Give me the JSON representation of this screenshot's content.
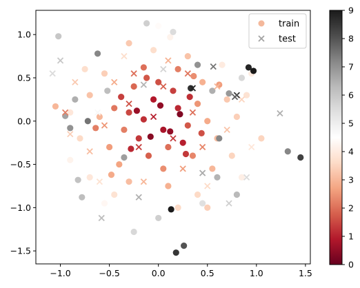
{
  "chart_data": {
    "type": "scatter",
    "title": "",
    "xlabel": "",
    "ylabel": "",
    "xlim": [
      -1.25,
      1.55
    ],
    "ylim": [
      -1.65,
      1.28
    ],
    "xticks": [
      -1.0,
      -0.5,
      0.0,
      0.5,
      1.0,
      1.5
    ],
    "xtick_labels": [
      "−1.0",
      "−0.5",
      "0.0",
      "0.5",
      "1.0",
      "1.5"
    ],
    "yticks": [
      1.0,
      0.5,
      0.0,
      -0.5,
      -1.0,
      -1.5
    ],
    "ytick_labels": [
      "1.0",
      "0.5",
      "0.0",
      "−0.5",
      "−1.0",
      "−1.5"
    ],
    "grid": false,
    "legend_position": "top-right",
    "colormap": "RdGy",
    "colorbar": {
      "min": 0,
      "max": 9,
      "ticks": [
        9,
        8,
        7,
        6,
        5,
        4,
        3,
        2,
        1,
        0
      ],
      "tick_labels": [
        "9",
        "8",
        "7",
        "6",
        "5",
        "4",
        "3",
        "2",
        "1",
        "0"
      ],
      "colors": [
        "#67001f",
        "#b2182b",
        "#d6604d",
        "#f4a582",
        "#fddbc7",
        "#ffffff",
        "#e0e0e0",
        "#bababa",
        "#878787",
        "#4d4d4d",
        "#1a1a1a"
      ]
    },
    "series": [
      {
        "name": "train",
        "marker": "circle",
        "legend_color": "#f4b89b",
        "points": [
          [
            -0.15,
            0.02,
            1.2
          ],
          [
            0.05,
            -0.1,
            0.8
          ],
          [
            -0.3,
            0.1,
            1.5
          ],
          [
            0.2,
            0.15,
            1.1
          ],
          [
            0.1,
            -0.3,
            2.0
          ],
          [
            -0.2,
            -0.2,
            1.3
          ],
          [
            0.3,
            -0.05,
            1.7
          ],
          [
            -0.05,
            0.25,
            0.9
          ],
          [
            0.15,
            0.35,
            1.4
          ],
          [
            -0.35,
            -0.1,
            2.2
          ],
          [
            0.25,
            -0.25,
            1.0
          ],
          [
            -0.1,
            -0.4,
            1.8
          ],
          [
            0.4,
            0.2,
            2.5
          ],
          [
            -0.45,
            0.15,
            2.1
          ],
          [
            0.0,
            0.45,
            1.6
          ],
          [
            0.35,
            -0.4,
            2.3
          ],
          [
            -0.25,
            0.4,
            1.9
          ],
          [
            0.5,
            0.0,
            2.8
          ],
          [
            -0.5,
            -0.3,
            2.6
          ],
          [
            0.05,
            -0.55,
            2.4
          ],
          [
            -0.6,
            0.05,
            3.0
          ],
          [
            0.6,
            -0.2,
            3.1
          ],
          [
            0.45,
            0.45,
            2.9
          ],
          [
            -0.4,
            -0.5,
            2.7
          ],
          [
            0.2,
            0.6,
            2.2
          ],
          [
            -0.15,
            0.62,
            2.0
          ],
          [
            0.7,
            0.25,
            3.3
          ],
          [
            -0.7,
            0.3,
            3.2
          ],
          [
            0.55,
            -0.55,
            3.0
          ],
          [
            -0.55,
            0.55,
            3.4
          ],
          [
            0.1,
            -0.75,
            2.9
          ],
          [
            -0.3,
            -0.7,
            3.1
          ],
          [
            0.75,
            -0.4,
            3.5
          ],
          [
            -0.8,
            -0.2,
            3.6
          ],
          [
            0.8,
            0.05,
            3.4
          ],
          [
            0.3,
            0.75,
            3.2
          ],
          [
            -0.05,
            0.82,
            3.7
          ],
          [
            0.9,
            0.3,
            3.8
          ],
          [
            -0.9,
            0.1,
            3.9
          ],
          [
            0.4,
            -0.85,
            3.6
          ],
          [
            -0.45,
            -0.85,
            3.8
          ],
          [
            0.65,
            0.65,
            4.0
          ],
          [
            -0.7,
            -0.65,
            3.9
          ],
          [
            1.05,
            -0.2,
            3.5
          ],
          [
            -1.05,
            0.17,
            3.0
          ],
          [
            0.12,
            0.97,
            4.2
          ],
          [
            0.2,
            -1.0,
            3.6
          ],
          [
            -0.55,
            -0.95,
            4.3
          ],
          [
            0.5,
            -1.0,
            3.4
          ],
          [
            -0.3,
            0.9,
            3.3
          ],
          [
            0.22,
            0.08,
            0.3
          ],
          [
            -0.08,
            -0.18,
            0.4
          ],
          [
            0.12,
            -0.12,
            0.5
          ],
          [
            -0.22,
            0.12,
            0.6
          ],
          [
            0.02,
            0.18,
            0.5
          ],
          [
            0.32,
            0.28,
            1.2
          ],
          [
            -0.38,
            0.28,
            1.4
          ],
          [
            0.28,
            -0.38,
            1.3
          ],
          [
            -0.28,
            -0.32,
            1.1
          ],
          [
            0.44,
            -0.14,
            1.6
          ],
          [
            -0.64,
            -0.08,
            2.2
          ],
          [
            -0.12,
            0.5,
            1.7
          ],
          [
            0.36,
            0.52,
            2.4
          ],
          [
            -0.48,
            -0.62,
            2.8
          ],
          [
            0.62,
            0.42,
            2.6
          ],
          [
            0.0,
            1.1,
            4.4
          ],
          [
            -0.75,
            0.6,
            3.7
          ],
          [
            0.85,
            -0.65,
            4.1
          ],
          [
            -0.9,
            -0.45,
            4.2
          ],
          [
            0.95,
            0.55,
            4.0
          ],
          [
            -1.02,
            0.98,
            6.0
          ],
          [
            -0.62,
            0.78,
            7.2
          ],
          [
            -0.12,
            1.13,
            5.8
          ],
          [
            0.15,
            1.03,
            5.5
          ],
          [
            0.4,
            0.65,
            7.0
          ],
          [
            0.55,
            0.35,
            6.5
          ],
          [
            0.92,
            0.62,
            8.8
          ],
          [
            0.97,
            0.58,
            9.0
          ],
          [
            1.32,
            -0.35,
            7.2
          ],
          [
            1.45,
            -0.42,
            8.3
          ],
          [
            0.13,
            -1.02,
            9.0
          ],
          [
            0.18,
            -1.52,
            8.5
          ],
          [
            0.26,
            -1.44,
            8.0
          ],
          [
            -0.25,
            -1.28,
            5.6
          ],
          [
            0.0,
            -1.12,
            5.8
          ],
          [
            -0.85,
            0.25,
            6.5
          ],
          [
            -0.9,
            -0.08,
            7.0
          ],
          [
            -0.72,
            0.0,
            7.5
          ],
          [
            -0.35,
            -0.42,
            6.8
          ],
          [
            0.62,
            -0.2,
            7.2
          ],
          [
            0.6,
            -0.65,
            6.4
          ],
          [
            0.33,
            0.38,
            8.6
          ],
          [
            -0.82,
            -0.68,
            6.1
          ],
          [
            -0.78,
            -0.88,
            6.2
          ],
          [
            0.8,
            -0.85,
            6.3
          ],
          [
            -0.52,
            0.35,
            6.2
          ],
          [
            0.72,
            0.32,
            6.9
          ],
          [
            -0.95,
            0.06,
            6.7
          ],
          [
            0.85,
            0.5,
            5.6
          ],
          [
            0.45,
            -0.95,
            5.4
          ]
        ]
      },
      {
        "name": "test",
        "marker": "x",
        "legend_color": "#a3a3a3",
        "points": [
          [
            -0.05,
            0.05,
            1.0
          ],
          [
            0.15,
            -0.2,
            1.3
          ],
          [
            -0.3,
            0.2,
            1.6
          ],
          [
            0.35,
            0.1,
            2.0
          ],
          [
            -0.2,
            -0.3,
            1.4
          ],
          [
            0.05,
            0.4,
            1.8
          ],
          [
            0.45,
            -0.3,
            2.3
          ],
          [
            -0.55,
            -0.05,
            2.5
          ],
          [
            0.25,
            -0.55,
            2.6
          ],
          [
            -0.45,
            0.45,
            2.8
          ],
          [
            0.6,
            0.4,
            3.0
          ],
          [
            -0.7,
            -0.35,
            3.1
          ],
          [
            0.7,
            -0.1,
            3.2
          ],
          [
            -0.15,
            -0.7,
            3.0
          ],
          [
            0.1,
            0.7,
            2.9
          ],
          [
            -0.85,
            0.45,
            3.3
          ],
          [
            0.85,
            0.25,
            3.5
          ],
          [
            -0.9,
            -0.15,
            3.4
          ],
          [
            0.5,
            -0.75,
            3.6
          ],
          [
            -0.35,
            0.75,
            3.7
          ],
          [
            -0.95,
            0.1,
            2.2
          ],
          [
            0.95,
            -0.3,
            3.9
          ],
          [
            -0.6,
            -0.7,
            3.8
          ],
          [
            0.3,
            0.55,
            2.1
          ],
          [
            -0.25,
            0.55,
            2.0
          ],
          [
            -1.0,
            0.7,
            6.0
          ],
          [
            -1.08,
            0.55,
            5.5
          ],
          [
            -0.58,
            -1.12,
            6.2
          ],
          [
            -0.2,
            -0.88,
            6.5
          ],
          [
            0.56,
            0.63,
            7.5
          ],
          [
            0.8,
            0.3,
            8.5
          ],
          [
            0.78,
            0.28,
            7.8
          ],
          [
            1.24,
            0.09,
            6.5
          ],
          [
            0.72,
            -0.95,
            5.8
          ],
          [
            0.9,
            -0.65,
            5.5
          ],
          [
            0.35,
            0.38,
            8.8
          ],
          [
            0.05,
            0.6,
            5.7
          ],
          [
            -0.15,
            0.42,
            6.4
          ],
          [
            0.45,
            -0.6,
            6.6
          ],
          [
            -0.62,
            0.1,
            4.7
          ]
        ]
      }
    ]
  }
}
